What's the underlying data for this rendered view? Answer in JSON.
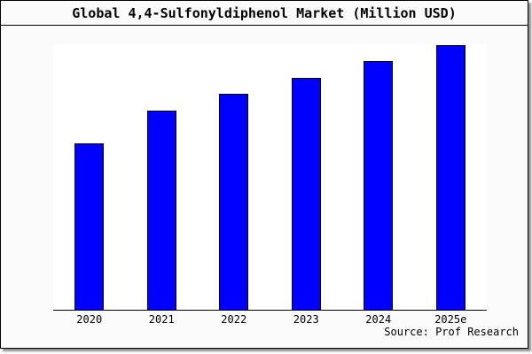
{
  "window": {
    "title": "Global 4,4-Sulfonyldiphenol Market (Million USD)"
  },
  "chart_data": {
    "type": "bar",
    "title": "Global 4,4-Sulfonyldiphenol Market (Million USD)",
    "categories": [
      "2020",
      "2021",
      "2022",
      "2023",
      "2024",
      "2025e"
    ],
    "values": [
      62.7,
      75.0,
      81.3,
      87.3,
      93.7,
      99.7
    ],
    "value_note": "relative units estimated from bar heights; y-axis is unlabeled in the image",
    "xlabel": "",
    "ylabel": "",
    "ylim": [
      0,
      100
    ],
    "grid": false,
    "legend": null,
    "source": "Source: Prof Research"
  },
  "colors": {
    "bar_fill": "#0000ff",
    "bar_border": "#000000",
    "panel_background": "#fafafa",
    "plot_background": "#ffffff",
    "frame_border": "#000000"
  }
}
